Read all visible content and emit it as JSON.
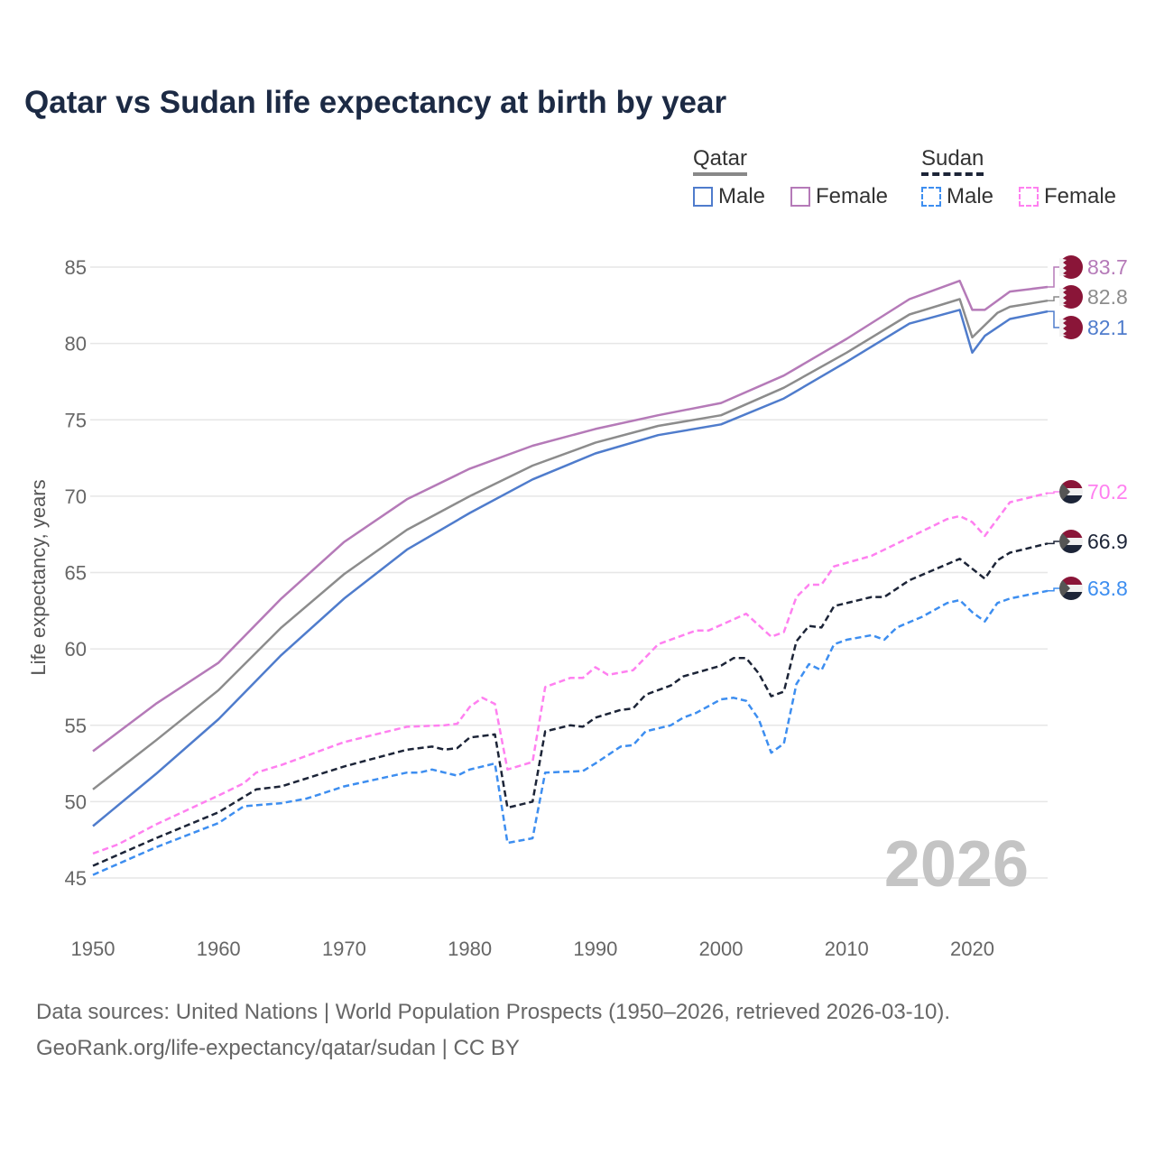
{
  "chart_data": {
    "type": "line",
    "title": "Qatar vs Sudan life expectancy at birth by year",
    "xlabel": "",
    "ylabel": "Life expectancy, years",
    "xlim": [
      1950,
      2026
    ],
    "ylim": [
      45,
      85
    ],
    "x_ticks": [
      "1950",
      "1960",
      "1970",
      "1980",
      "1990",
      "2000",
      "2010",
      "2020"
    ],
    "y_ticks": [
      "45",
      "50",
      "55",
      "60",
      "65",
      "70",
      "75",
      "80",
      "85"
    ],
    "grid": true,
    "watermark_year": "2026",
    "legend": {
      "groups": [
        {
          "name": "Qatar",
          "style": "solid",
          "items": [
            "Male",
            "Female"
          ]
        },
        {
          "name": "Sudan",
          "style": "dashed",
          "items": [
            "Male",
            "Female"
          ]
        }
      ],
      "placement": "top-right"
    },
    "series": [
      {
        "name": "Qatar Female",
        "country": "Qatar",
        "sex": "Female",
        "color": "#b57ab8",
        "dashed": false,
        "end_label": "83.7",
        "points": [
          [
            1950,
            53.3
          ],
          [
            1955,
            56.4
          ],
          [
            1960,
            59.1
          ],
          [
            1965,
            63.3
          ],
          [
            1970,
            67.0
          ],
          [
            1975,
            69.8
          ],
          [
            1980,
            71.8
          ],
          [
            1985,
            73.3
          ],
          [
            1990,
            74.4
          ],
          [
            1995,
            75.3
          ],
          [
            2000,
            76.1
          ],
          [
            2005,
            77.9
          ],
          [
            2010,
            80.3
          ],
          [
            2015,
            82.9
          ],
          [
            2019,
            84.1
          ],
          [
            2020,
            82.2
          ],
          [
            2021,
            82.2
          ],
          [
            2023,
            83.4
          ],
          [
            2026,
            83.7
          ]
        ]
      },
      {
        "name": "Qatar Total",
        "country": "Qatar",
        "sex": "Total",
        "color": "#8c8c8c",
        "dashed": false,
        "end_label": "82.8",
        "points": [
          [
            1950,
            50.8
          ],
          [
            1955,
            54.0
          ],
          [
            1960,
            57.3
          ],
          [
            1965,
            61.4
          ],
          [
            1970,
            64.9
          ],
          [
            1975,
            67.8
          ],
          [
            1980,
            70.0
          ],
          [
            1985,
            72.0
          ],
          [
            1990,
            73.5
          ],
          [
            1995,
            74.6
          ],
          [
            2000,
            75.3
          ],
          [
            2005,
            77.1
          ],
          [
            2010,
            79.4
          ],
          [
            2015,
            81.9
          ],
          [
            2019,
            82.9
          ],
          [
            2020,
            80.4
          ],
          [
            2022,
            82.0
          ],
          [
            2023,
            82.4
          ],
          [
            2026,
            82.8
          ]
        ]
      },
      {
        "name": "Qatar Male",
        "country": "Qatar",
        "sex": "Male",
        "color": "#4f7ccc",
        "dashed": false,
        "end_label": "82.1",
        "points": [
          [
            1950,
            48.4
          ],
          [
            1955,
            51.8
          ],
          [
            1960,
            55.4
          ],
          [
            1965,
            59.6
          ],
          [
            1970,
            63.3
          ],
          [
            1975,
            66.5
          ],
          [
            1980,
            68.9
          ],
          [
            1985,
            71.1
          ],
          [
            1990,
            72.8
          ],
          [
            1995,
            74.0
          ],
          [
            2000,
            74.7
          ],
          [
            2005,
            76.4
          ],
          [
            2010,
            78.8
          ],
          [
            2015,
            81.3
          ],
          [
            2019,
            82.2
          ],
          [
            2020,
            79.4
          ],
          [
            2021,
            80.5
          ],
          [
            2023,
            81.6
          ],
          [
            2026,
            82.1
          ]
        ]
      },
      {
        "name": "Sudan Female",
        "country": "Sudan",
        "sex": "Female",
        "color": "#ff80f0",
        "dashed": true,
        "end_label": "70.2",
        "points": [
          [
            1950,
            46.6
          ],
          [
            1952,
            47.2
          ],
          [
            1955,
            48.5
          ],
          [
            1960,
            50.4
          ],
          [
            1962,
            51.2
          ],
          [
            1963,
            51.9
          ],
          [
            1965,
            52.4
          ],
          [
            1970,
            53.9
          ],
          [
            1975,
            54.9
          ],
          [
            1978,
            55.0
          ],
          [
            1979,
            55.1
          ],
          [
            1980,
            56.2
          ],
          [
            1981,
            56.8
          ],
          [
            1982,
            56.4
          ],
          [
            1983,
            52.1
          ],
          [
            1985,
            52.6
          ],
          [
            1986,
            57.5
          ],
          [
            1988,
            58.1
          ],
          [
            1989,
            58.1
          ],
          [
            1990,
            58.8
          ],
          [
            1991,
            58.3
          ],
          [
            1993,
            58.6
          ],
          [
            1995,
            60.3
          ],
          [
            1998,
            61.2
          ],
          [
            1999,
            61.2
          ],
          [
            2002,
            62.3
          ],
          [
            2004,
            60.8
          ],
          [
            2005,
            61.1
          ],
          [
            2006,
            63.4
          ],
          [
            2007,
            64.2
          ],
          [
            2008,
            64.2
          ],
          [
            2009,
            65.4
          ],
          [
            2012,
            66.1
          ],
          [
            2015,
            67.3
          ],
          [
            2018,
            68.5
          ],
          [
            2019,
            68.7
          ],
          [
            2020,
            68.3
          ],
          [
            2021,
            67.4
          ],
          [
            2023,
            69.6
          ],
          [
            2026,
            70.2
          ]
        ]
      },
      {
        "name": "Sudan Total",
        "country": "Sudan",
        "sex": "Total",
        "color": "#1c2437",
        "dashed": true,
        "end_label": "66.9",
        "points": [
          [
            1950,
            45.8
          ],
          [
            1955,
            47.6
          ],
          [
            1960,
            49.3
          ],
          [
            1963,
            50.8
          ],
          [
            1965,
            51.0
          ],
          [
            1970,
            52.3
          ],
          [
            1975,
            53.4
          ],
          [
            1977,
            53.6
          ],
          [
            1978,
            53.4
          ],
          [
            1979,
            53.5
          ],
          [
            1980,
            54.2
          ],
          [
            1982,
            54.4
          ],
          [
            1983,
            49.6
          ],
          [
            1985,
            50.0
          ],
          [
            1986,
            54.6
          ],
          [
            1988,
            55.0
          ],
          [
            1989,
            54.9
          ],
          [
            1990,
            55.5
          ],
          [
            1992,
            56.0
          ],
          [
            1993,
            56.1
          ],
          [
            1994,
            57.0
          ],
          [
            1996,
            57.6
          ],
          [
            1997,
            58.2
          ],
          [
            2000,
            58.9
          ],
          [
            2001,
            59.4
          ],
          [
            2002,
            59.4
          ],
          [
            2003,
            58.4
          ],
          [
            2004,
            56.9
          ],
          [
            2005,
            57.2
          ],
          [
            2006,
            60.5
          ],
          [
            2007,
            61.5
          ],
          [
            2008,
            61.4
          ],
          [
            2009,
            62.8
          ],
          [
            2012,
            63.4
          ],
          [
            2013,
            63.4
          ],
          [
            2015,
            64.5
          ],
          [
            2019,
            65.9
          ],
          [
            2021,
            64.6
          ],
          [
            2022,
            65.8
          ],
          [
            2023,
            66.3
          ],
          [
            2026,
            66.9
          ]
        ]
      },
      {
        "name": "Sudan Male",
        "country": "Sudan",
        "sex": "Male",
        "color": "#3d8ef0",
        "dashed": true,
        "end_label": "63.8",
        "points": [
          [
            1950,
            45.2
          ],
          [
            1955,
            47.0
          ],
          [
            1960,
            48.6
          ],
          [
            1962,
            49.7
          ],
          [
            1965,
            49.9
          ],
          [
            1967,
            50.2
          ],
          [
            1970,
            51.0
          ],
          [
            1975,
            51.9
          ],
          [
            1976,
            51.9
          ],
          [
            1977,
            52.1
          ],
          [
            1979,
            51.7
          ],
          [
            1980,
            52.1
          ],
          [
            1982,
            52.5
          ],
          [
            1983,
            47.3
          ],
          [
            1985,
            47.6
          ],
          [
            1986,
            51.9
          ],
          [
            1989,
            52.0
          ],
          [
            1990,
            52.5
          ],
          [
            1992,
            53.6
          ],
          [
            1993,
            53.7
          ],
          [
            1994,
            54.6
          ],
          [
            1996,
            55.0
          ],
          [
            1997,
            55.5
          ],
          [
            1998,
            55.8
          ],
          [
            2000,
            56.7
          ],
          [
            2001,
            56.8
          ],
          [
            2002,
            56.6
          ],
          [
            2003,
            55.4
          ],
          [
            2004,
            53.2
          ],
          [
            2005,
            53.8
          ],
          [
            2006,
            57.7
          ],
          [
            2007,
            59.0
          ],
          [
            2008,
            58.6
          ],
          [
            2009,
            60.3
          ],
          [
            2010,
            60.6
          ],
          [
            2012,
            60.9
          ],
          [
            2013,
            60.6
          ],
          [
            2014,
            61.4
          ],
          [
            2016,
            62.1
          ],
          [
            2018,
            63.0
          ],
          [
            2019,
            63.2
          ],
          [
            2020,
            62.4
          ],
          [
            2021,
            61.8
          ],
          [
            2022,
            63.0
          ],
          [
            2023,
            63.3
          ],
          [
            2026,
            63.8
          ]
        ]
      }
    ]
  },
  "footer": {
    "line1": "Data sources: United Nations | World Population Prospects (1950–2026, retrieved 2026-03-10).",
    "line2": "GeoRank.org/life-expectancy/qatar/sudan | CC BY"
  }
}
